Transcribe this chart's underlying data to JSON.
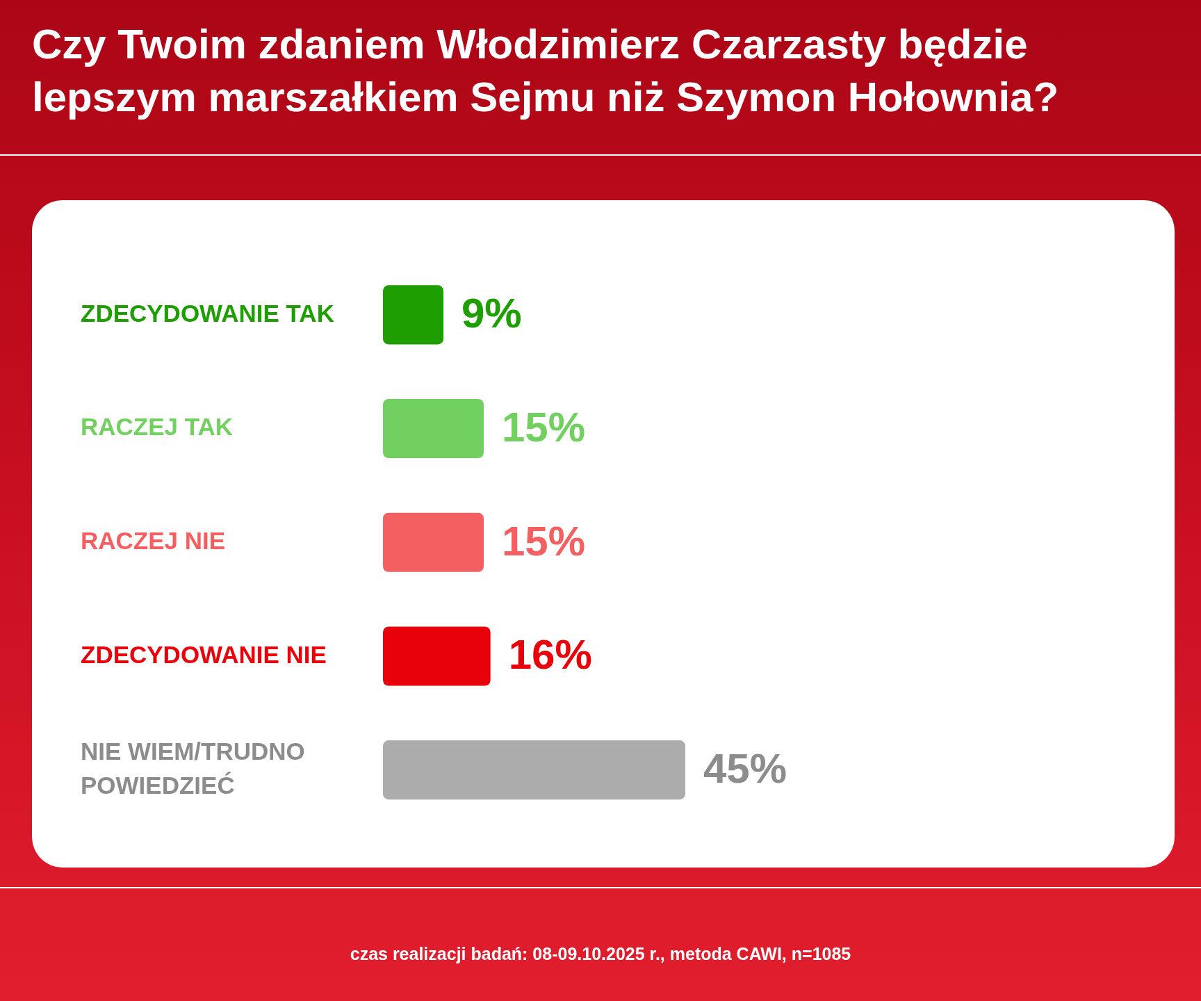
{
  "chart_data": {
    "type": "bar",
    "orientation": "horizontal",
    "title": "Czy Twoim zdaniem Włodzimierz Czarzasty będzie lepszym marszałkiem Sejmu niż Szymon Hołownia?",
    "categories": [
      "ZDECYDOWANIE TAK",
      "RACZEJ TAK",
      "RACZEJ NIE",
      "ZDECYDOWANIE NIE",
      "NIE WIEM/TRUDNO POWIEDZIEĆ"
    ],
    "values": [
      9,
      15,
      15,
      16,
      45
    ],
    "value_labels": [
      "9%",
      "15%",
      "15%",
      "16%",
      "45%"
    ],
    "colors": [
      "#1e9e00",
      "#72d060",
      "#f46062",
      "#e8000a",
      "#acacac"
    ],
    "tick_labels": "y",
    "grid": false,
    "legend": false,
    "annotations": [
      "czas realizacji badań: 08-09.10.2025 r., metoda CAWI, n=1085"
    ]
  }
}
